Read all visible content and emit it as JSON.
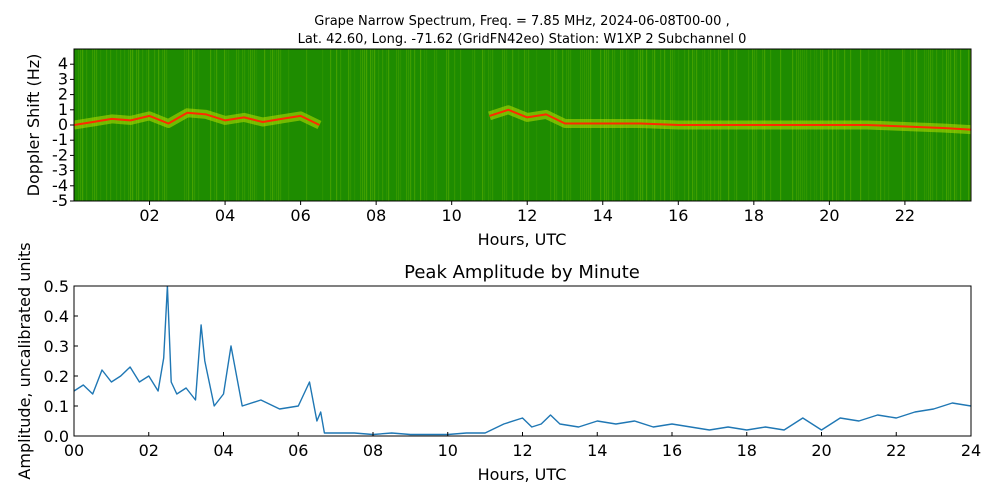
{
  "figure": {
    "title_line1": "Grape Narrow Spectrum, Freq. = 7.85 MHz, 2024-06-08T00-00 ,",
    "title_line2": "Lat.  42.60, Long. -71.62 (GridFN42eo) Station: W1XP 2 Subchannel 0"
  },
  "chart_data": [
    {
      "type": "heatmap",
      "title": "",
      "xlabel": "Hours, UTC",
      "ylabel": "Doppler Shift (Hz)",
      "xlim": [
        0,
        23.75
      ],
      "ylim": [
        -5,
        5
      ],
      "x_ticks": [
        "02",
        "04",
        "06",
        "08",
        "10",
        "12",
        "14",
        "16",
        "18",
        "20",
        "22"
      ],
      "x_tick_values": [
        2,
        4,
        6,
        8,
        10,
        12,
        14,
        16,
        18,
        20,
        22
      ],
      "y_ticks": [
        "4",
        "3",
        "2",
        "1",
        "0",
        "-1",
        "-2",
        "-3",
        "-4",
        "-5"
      ],
      "y_tick_values": [
        4,
        3,
        2,
        1,
        0,
        -1,
        -2,
        -3,
        -4,
        -5
      ],
      "colors": {
        "background": "#1e8c00",
        "mid": "#b8e000",
        "peak": "#ff2a00"
      },
      "trace": {
        "x": [
          0,
          0.5,
          1.0,
          1.5,
          2.0,
          2.5,
          3.0,
          3.5,
          4.0,
          4.5,
          5.0,
          5.5,
          6.0,
          6.5,
          11.0,
          11.5,
          12.0,
          12.5,
          13.0,
          14,
          15,
          16,
          17,
          18,
          19,
          20,
          21,
          22,
          23,
          23.75
        ],
        "y": [
          0.0,
          0.2,
          0.4,
          0.3,
          0.6,
          0.1,
          0.8,
          0.7,
          0.3,
          0.5,
          0.2,
          0.4,
          0.6,
          0.0,
          0.6,
          1.0,
          0.5,
          0.7,
          0.1,
          0.1,
          0.1,
          0.0,
          0.0,
          0.0,
          0.0,
          0.0,
          0.0,
          -0.1,
          -0.2,
          -0.3
        ]
      }
    },
    {
      "type": "line",
      "title": "Peak Amplitude by Minute",
      "xlabel": "Hours, UTC",
      "ylabel": "Amplitude, uncalibrated units",
      "xlim": [
        0,
        24
      ],
      "ylim": [
        0,
        0.5
      ],
      "x_ticks": [
        "00",
        "02",
        "04",
        "06",
        "08",
        "10",
        "12",
        "14",
        "16",
        "18",
        "20",
        "22",
        "24"
      ],
      "x_tick_values": [
        0,
        2,
        4,
        6,
        8,
        10,
        12,
        14,
        16,
        18,
        20,
        22,
        24
      ],
      "y_ticks": [
        "0.0",
        "0.1",
        "0.2",
        "0.3",
        "0.4",
        "0.5"
      ],
      "y_tick_values": [
        0,
        0.1,
        0.2,
        0.3,
        0.4,
        0.5
      ],
      "line_color": "#1f77b4",
      "x": [
        0,
        0.25,
        0.5,
        0.75,
        1.0,
        1.25,
        1.5,
        1.75,
        2.0,
        2.25,
        2.4,
        2.5,
        2.6,
        2.75,
        3.0,
        3.25,
        3.4,
        3.5,
        3.75,
        4.0,
        4.2,
        4.5,
        5.0,
        5.5,
        6.0,
        6.3,
        6.5,
        6.6,
        6.7,
        7.0,
        7.5,
        8.0,
        8.5,
        9.0,
        9.5,
        10.0,
        10.5,
        11.0,
        11.5,
        12.0,
        12.25,
        12.5,
        12.75,
        13.0,
        13.5,
        14.0,
        14.5,
        15.0,
        15.5,
        16.0,
        16.5,
        17.0,
        17.5,
        18.0,
        18.5,
        19.0,
        19.5,
        20.0,
        20.5,
        21.0,
        21.5,
        22.0,
        22.5,
        23.0,
        23.5,
        24.0
      ],
      "y": [
        0.15,
        0.17,
        0.14,
        0.22,
        0.18,
        0.2,
        0.23,
        0.18,
        0.2,
        0.15,
        0.26,
        0.5,
        0.18,
        0.14,
        0.16,
        0.12,
        0.37,
        0.25,
        0.1,
        0.14,
        0.3,
        0.1,
        0.12,
        0.09,
        0.1,
        0.18,
        0.05,
        0.08,
        0.01,
        0.01,
        0.01,
        0.005,
        0.01,
        0.005,
        0.005,
        0.005,
        0.01,
        0.01,
        0.04,
        0.06,
        0.03,
        0.04,
        0.07,
        0.04,
        0.03,
        0.05,
        0.04,
        0.05,
        0.03,
        0.04,
        0.03,
        0.02,
        0.03,
        0.02,
        0.03,
        0.02,
        0.06,
        0.02,
        0.06,
        0.05,
        0.07,
        0.06,
        0.08,
        0.09,
        0.11,
        0.1
      ]
    }
  ]
}
